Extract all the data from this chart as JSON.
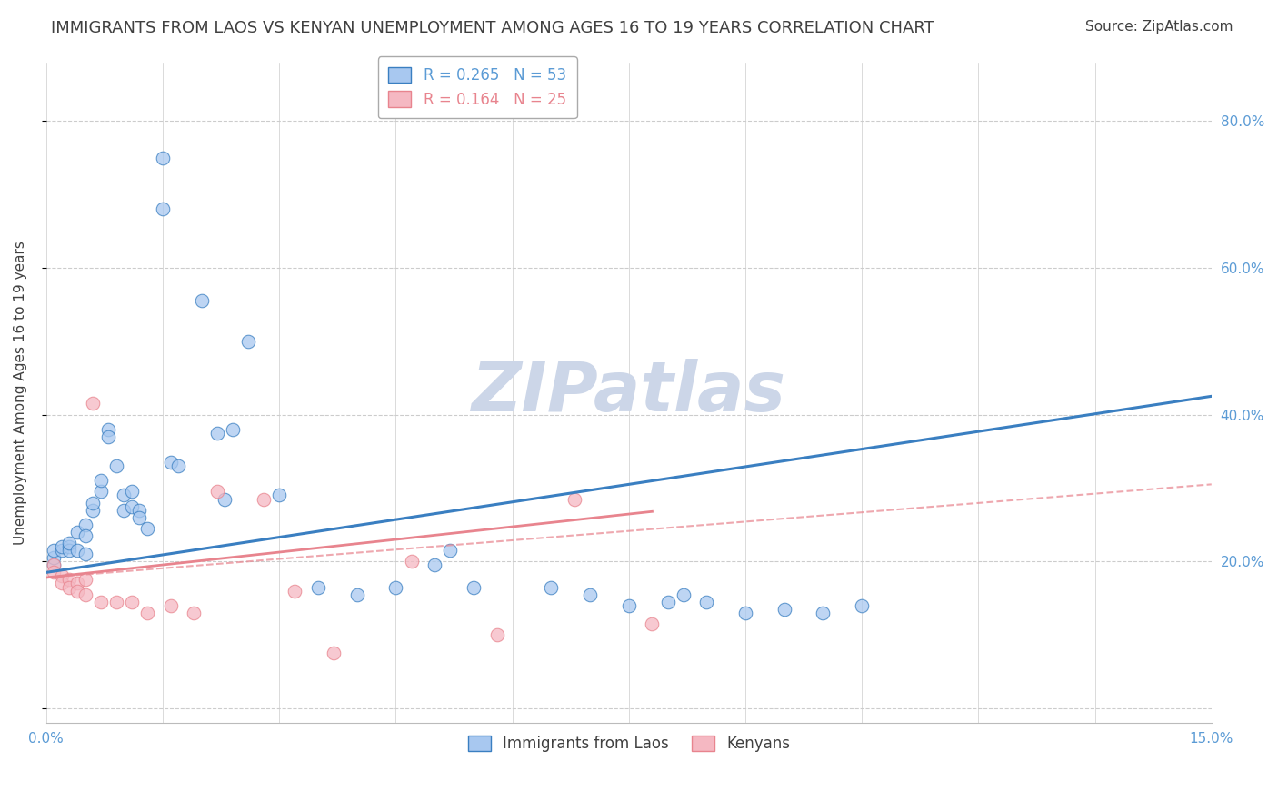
{
  "title": "IMMIGRANTS FROM LAOS VS KENYAN UNEMPLOYMENT AMONG AGES 16 TO 19 YEARS CORRELATION CHART",
  "source": "Source: ZipAtlas.com",
  "ylabel_label": "Unemployment Among Ages 16 to 19 years",
  "xlim": [
    0.0,
    0.15
  ],
  "ylim": [
    -0.02,
    0.88
  ],
  "yticks": [
    0.0,
    0.2,
    0.4,
    0.6,
    0.8
  ],
  "ytick_labels": [
    "",
    "20.0%",
    "40.0%",
    "60.0%",
    "80.0%"
  ],
  "legend_entries": [
    {
      "label": "R = 0.265   N = 53",
      "color": "#5b9bd5"
    },
    {
      "label": "R = 0.164   N = 25",
      "color": "#e8848e"
    }
  ],
  "watermark": "ZIPatlas",
  "watermark_color": "#ccd6e8",
  "blue_scatter_x": [
    0.001,
    0.001,
    0.001,
    0.002,
    0.002,
    0.003,
    0.003,
    0.003,
    0.004,
    0.004,
    0.005,
    0.005,
    0.005,
    0.006,
    0.006,
    0.007,
    0.007,
    0.008,
    0.008,
    0.009,
    0.01,
    0.01,
    0.011,
    0.011,
    0.012,
    0.012,
    0.013,
    0.015,
    0.015,
    0.016,
    0.017,
    0.02,
    0.022,
    0.023,
    0.024,
    0.026,
    0.03,
    0.035,
    0.04,
    0.045,
    0.05,
    0.052,
    0.055,
    0.065,
    0.07,
    0.075,
    0.08,
    0.082,
    0.085,
    0.09,
    0.095,
    0.1,
    0.105
  ],
  "blue_scatter_y": [
    0.195,
    0.205,
    0.215,
    0.215,
    0.22,
    0.22,
    0.215,
    0.225,
    0.215,
    0.24,
    0.25,
    0.235,
    0.21,
    0.27,
    0.28,
    0.295,
    0.31,
    0.38,
    0.37,
    0.33,
    0.29,
    0.27,
    0.275,
    0.295,
    0.27,
    0.26,
    0.245,
    0.75,
    0.68,
    0.335,
    0.33,
    0.555,
    0.375,
    0.285,
    0.38,
    0.5,
    0.29,
    0.165,
    0.155,
    0.165,
    0.195,
    0.215,
    0.165,
    0.165,
    0.155,
    0.14,
    0.145,
    0.155,
    0.145,
    0.13,
    0.135,
    0.13,
    0.14
  ],
  "pink_scatter_x": [
    0.001,
    0.001,
    0.002,
    0.002,
    0.003,
    0.003,
    0.004,
    0.004,
    0.005,
    0.005,
    0.006,
    0.007,
    0.009,
    0.011,
    0.013,
    0.016,
    0.019,
    0.022,
    0.028,
    0.032,
    0.037,
    0.047,
    0.058,
    0.068,
    0.078
  ],
  "pink_scatter_y": [
    0.195,
    0.185,
    0.18,
    0.17,
    0.175,
    0.165,
    0.17,
    0.16,
    0.175,
    0.155,
    0.415,
    0.145,
    0.145,
    0.145,
    0.13,
    0.14,
    0.13,
    0.295,
    0.285,
    0.16,
    0.075,
    0.2,
    0.1,
    0.285,
    0.115
  ],
  "blue_line_x": [
    0.0,
    0.15
  ],
  "blue_line_y": [
    0.185,
    0.425
  ],
  "pink_solid_line_x": [
    0.0,
    0.078
  ],
  "pink_solid_line_y": [
    0.178,
    0.268
  ],
  "pink_dashed_line_x": [
    0.0,
    0.15
  ],
  "pink_dashed_line_y": [
    0.178,
    0.305
  ],
  "blue_color": "#3a7fc1",
  "pink_color": "#e8848e",
  "blue_scatter_color": "#a8c8f0",
  "pink_scatter_color": "#f5b8c2",
  "grid_color": "#cccccc",
  "background_color": "#ffffff",
  "title_color": "#404040",
  "axis_label_color": "#5b9bd5",
  "font_size_title": 13,
  "font_size_labels": 11,
  "font_size_ticks": 11,
  "font_size_source": 11,
  "font_size_watermark": 55
}
